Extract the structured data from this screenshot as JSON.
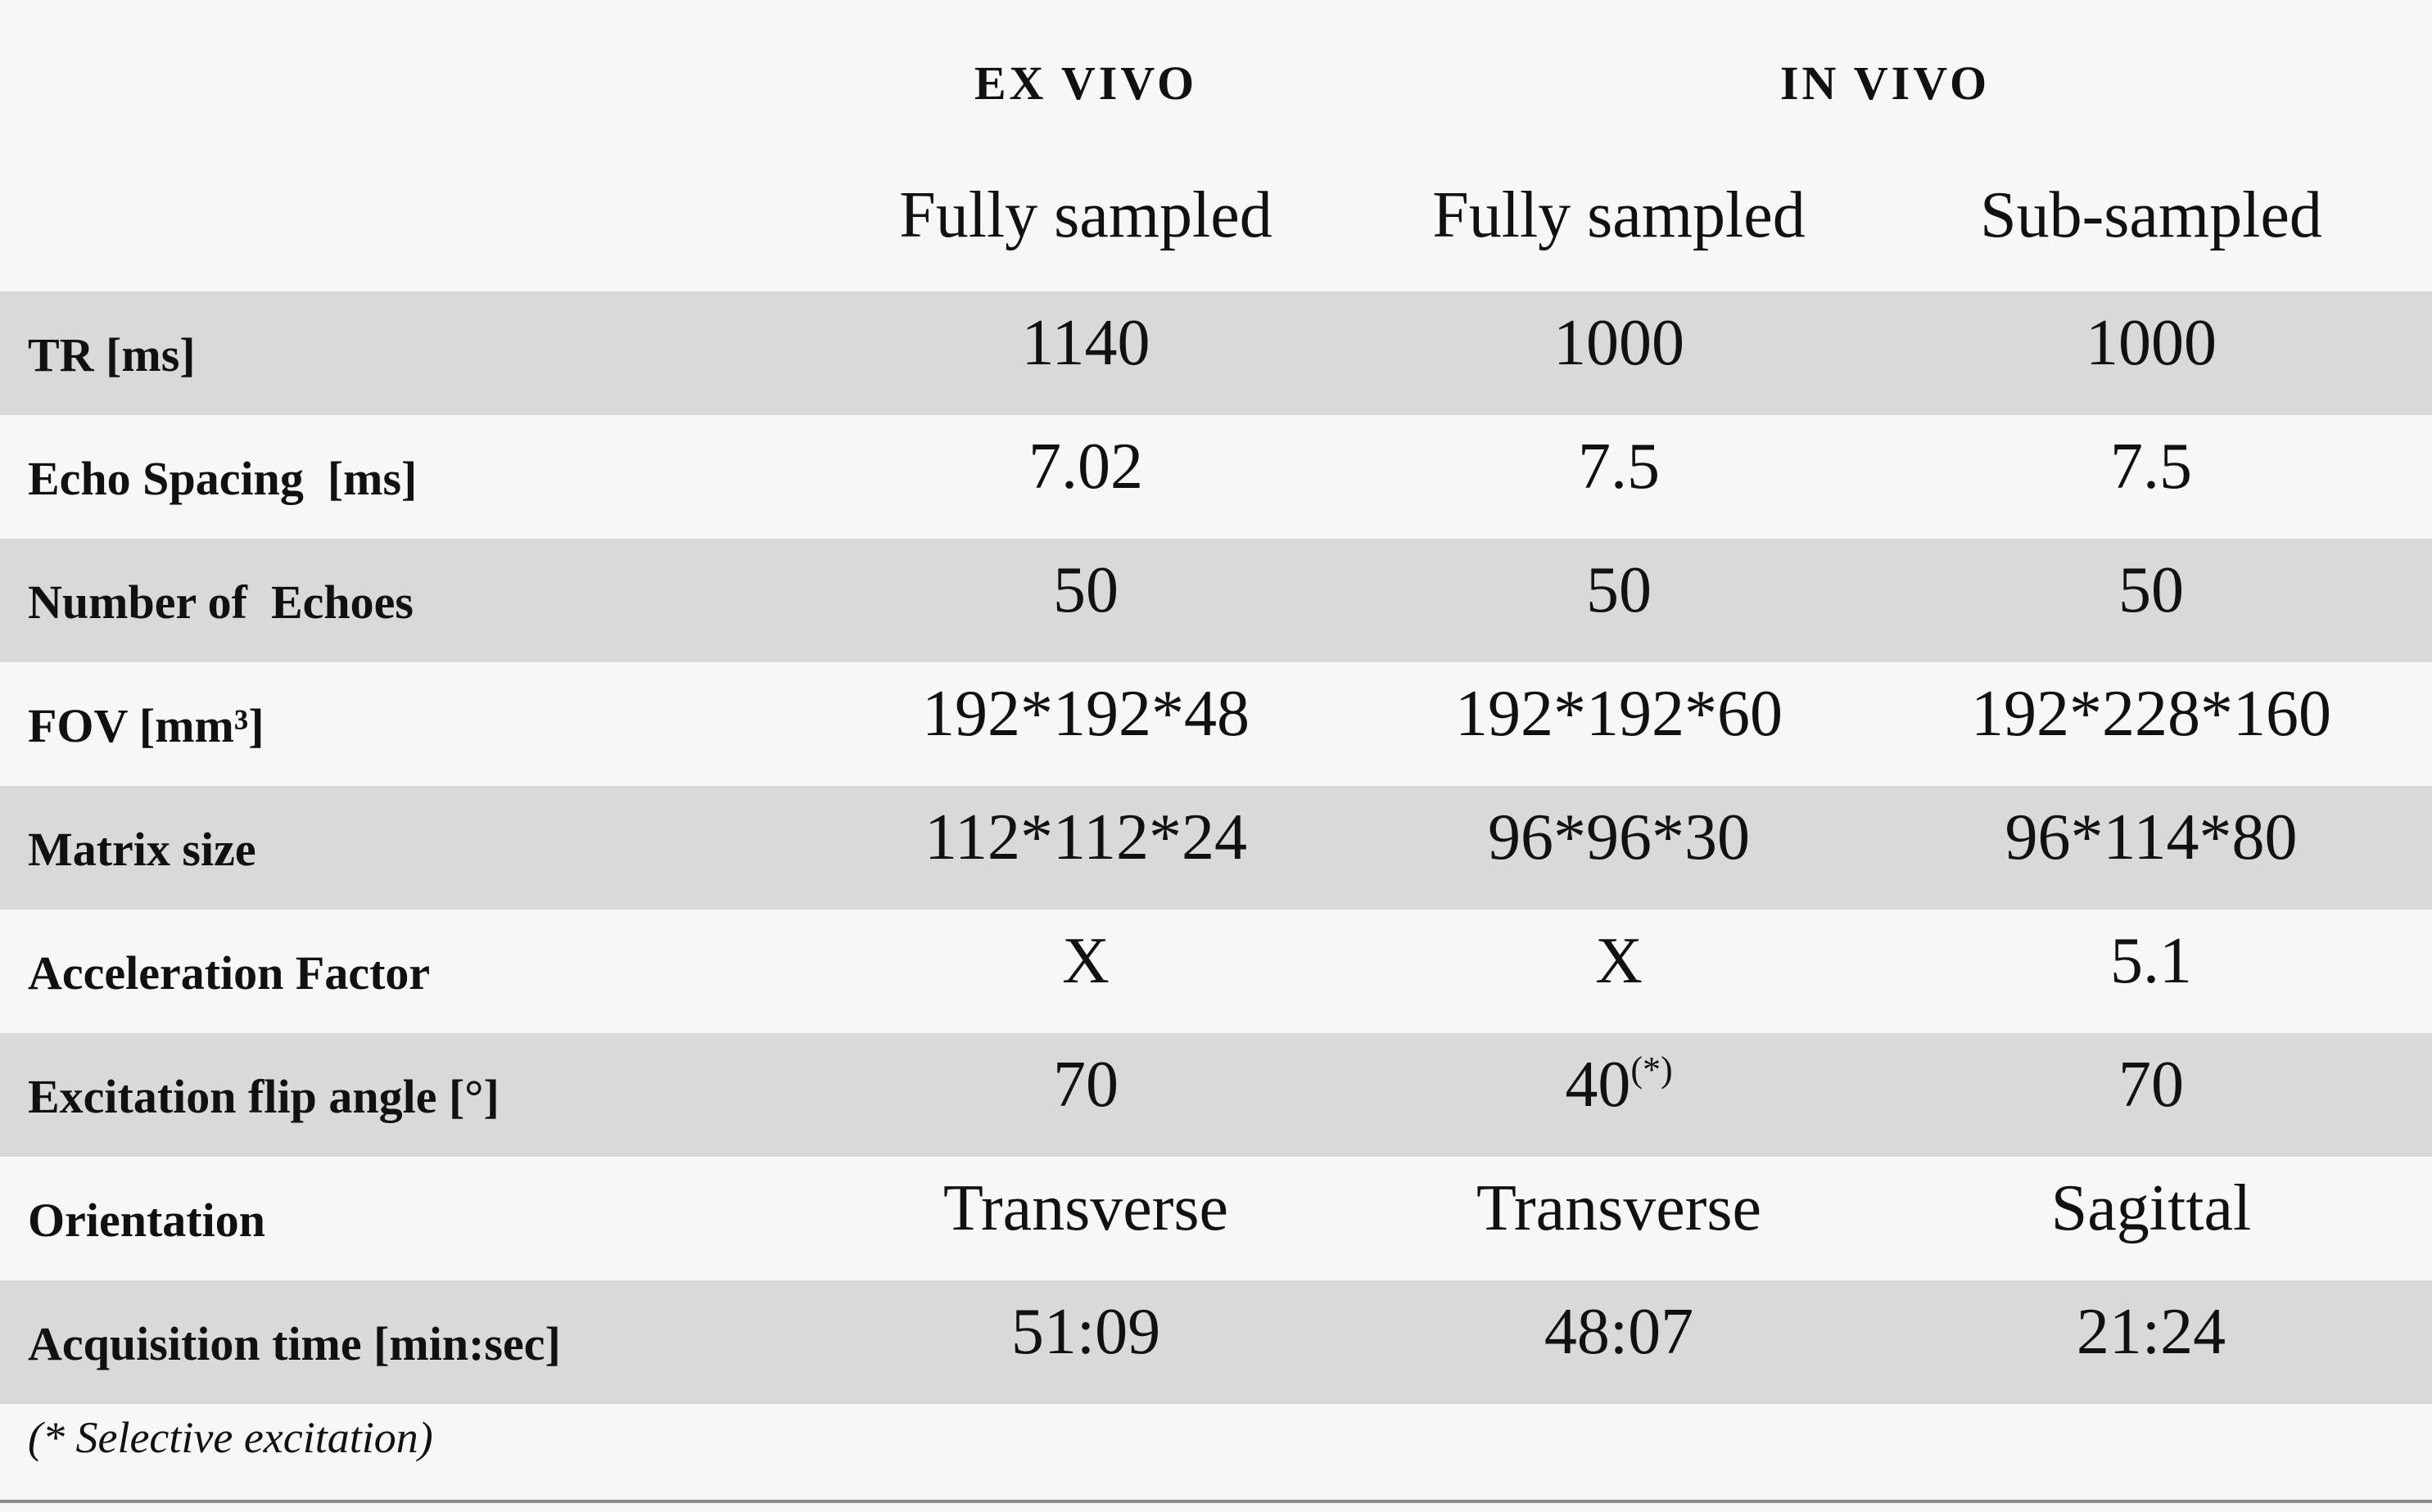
{
  "table": {
    "group_headers": [
      "EX VIVO",
      "IN VIVO"
    ],
    "column_headers": [
      "Fully sampled",
      "Fully sampled",
      "Sub-sampled"
    ],
    "rows": [
      {
        "label": "TR [ms]",
        "values": [
          "1140",
          "1000",
          "1000"
        ]
      },
      {
        "label": "Echo Spacing  [ms]",
        "values": [
          "7.02",
          "7.5",
          "7.5"
        ]
      },
      {
        "label": "Number of  Echoes",
        "values": [
          "50",
          "50",
          "50"
        ]
      },
      {
        "label": "FOV [mm³]",
        "values": [
          "192*192*48",
          "192*192*60",
          "192*228*160"
        ]
      },
      {
        "label": "Matrix size",
        "values": [
          "112*112*24",
          "96*96*30",
          "96*114*80"
        ]
      },
      {
        "label": "Acceleration Factor",
        "values": [
          "X",
          "X",
          "5.1"
        ]
      },
      {
        "label": "Excitation flip angle [°]",
        "values": [
          "70",
          "40",
          "70"
        ],
        "superscripts": [
          null,
          "(*)",
          null
        ]
      },
      {
        "label": "Orientation",
        "values": [
          "Transverse",
          "Transverse",
          "Sagittal"
        ]
      },
      {
        "label": "Acquisition time [min:sec]",
        "values": [
          "51:09",
          "48:07",
          "21:24"
        ]
      }
    ],
    "footnote": "(* Selective excitation)"
  }
}
